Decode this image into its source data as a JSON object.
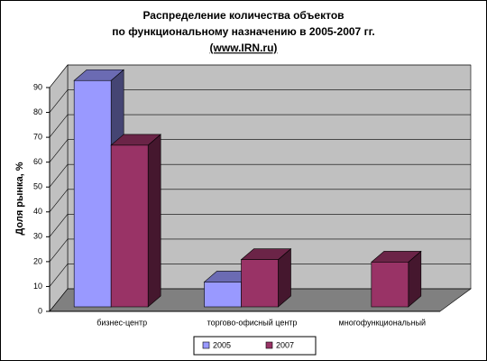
{
  "chart_data": {
    "type": "bar3d",
    "title": [
      "Распределение количества объектов",
      "по функциональному назначению в 2005-2007 гг.",
      "(www.IRN.ru)"
    ],
    "y_label": "Доля рынка, %",
    "categories": [
      "бизнес-центр",
      "торгово-офисный центр",
      "многофункциональный"
    ],
    "series": [
      {
        "name": "2005",
        "color": "#9999ff",
        "values": [
          91,
          10,
          null
        ]
      },
      {
        "name": "2007",
        "color": "#993366",
        "values": [
          65,
          19,
          18
        ]
      }
    ],
    "ylim": [
      0,
      90
    ],
    "yticks": [
      0,
      10,
      20,
      30,
      40,
      50,
      60,
      70,
      80,
      90
    ],
    "grid": true,
    "legend": "bottom"
  }
}
